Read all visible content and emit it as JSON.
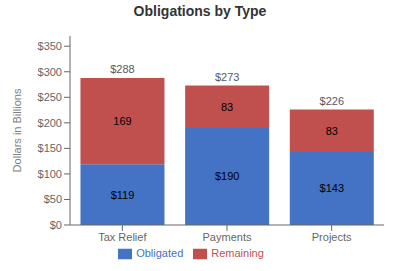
{
  "chart_data": {
    "type": "bar",
    "title": "Obligations by Type",
    "categories": [
      "Tax Relief",
      "Payments",
      "Projects"
    ],
    "series": [
      {
        "name": "Obligated",
        "color": "#4472C4",
        "values": [
          119,
          190,
          143
        ],
        "value_labels": [
          "$119",
          "$190",
          "$143"
        ]
      },
      {
        "name": "Remaining",
        "color": "#C0504D",
        "values": [
          169,
          83,
          83
        ]
      }
    ],
    "totals": [
      288,
      273,
      226
    ],
    "total_labels": [
      "$288",
      "$273",
      "$226"
    ],
    "ylabel": "Dollars in Billions",
    "ylim": [
      0,
      370
    ],
    "yticks": [
      {
        "value": 0,
        "label": "$0"
      },
      {
        "value": 50,
        "label": "$50"
      },
      {
        "value": 100,
        "label": "$100"
      },
      {
        "value": 150,
        "label": "$150"
      },
      {
        "value": 200,
        "label": "$200"
      },
      {
        "value": 250,
        "label": "$250"
      },
      {
        "value": 300,
        "label": "$300"
      },
      {
        "value": 350,
        "label": "$350"
      }
    ],
    "stacked": true,
    "data_labels": true,
    "grid": false,
    "legend": "bottom"
  }
}
